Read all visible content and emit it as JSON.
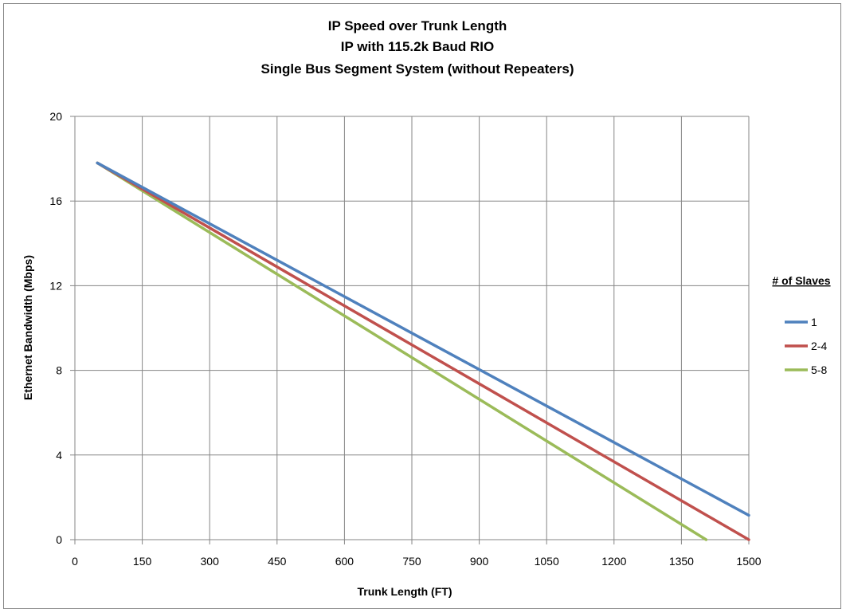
{
  "chart_data": {
    "type": "line",
    "title_lines": [
      "IP Speed over Trunk Length",
      "IP with 115.2k Baud RIO",
      "Single Bus Segment System (without Repeaters)"
    ],
    "xlabel": "Trunk Length (FT)",
    "ylabel": "Ethernet Bandwidth (Mbps)",
    "xlim": [
      0,
      1500
    ],
    "ylim": [
      0,
      20
    ],
    "x_ticks": [
      0,
      150,
      300,
      450,
      600,
      750,
      900,
      1050,
      1200,
      1350,
      1500
    ],
    "y_ticks": [
      0,
      4,
      8,
      12,
      16,
      20
    ],
    "grid": true,
    "legend_title": "# of Slaves",
    "legend_position": "right",
    "series": [
      {
        "name": "1",
        "color": "#4F81BD",
        "x": [
          50,
          1500
        ],
        "y": [
          17.8,
          1.15
        ]
      },
      {
        "name": "2-4",
        "color": "#C0504D",
        "x": [
          50,
          1500
        ],
        "y": [
          17.8,
          0.0
        ]
      },
      {
        "name": "5-8",
        "color": "#9BBB59",
        "x": [
          50,
          1405
        ],
        "y": [
          17.8,
          0.0
        ]
      }
    ]
  }
}
